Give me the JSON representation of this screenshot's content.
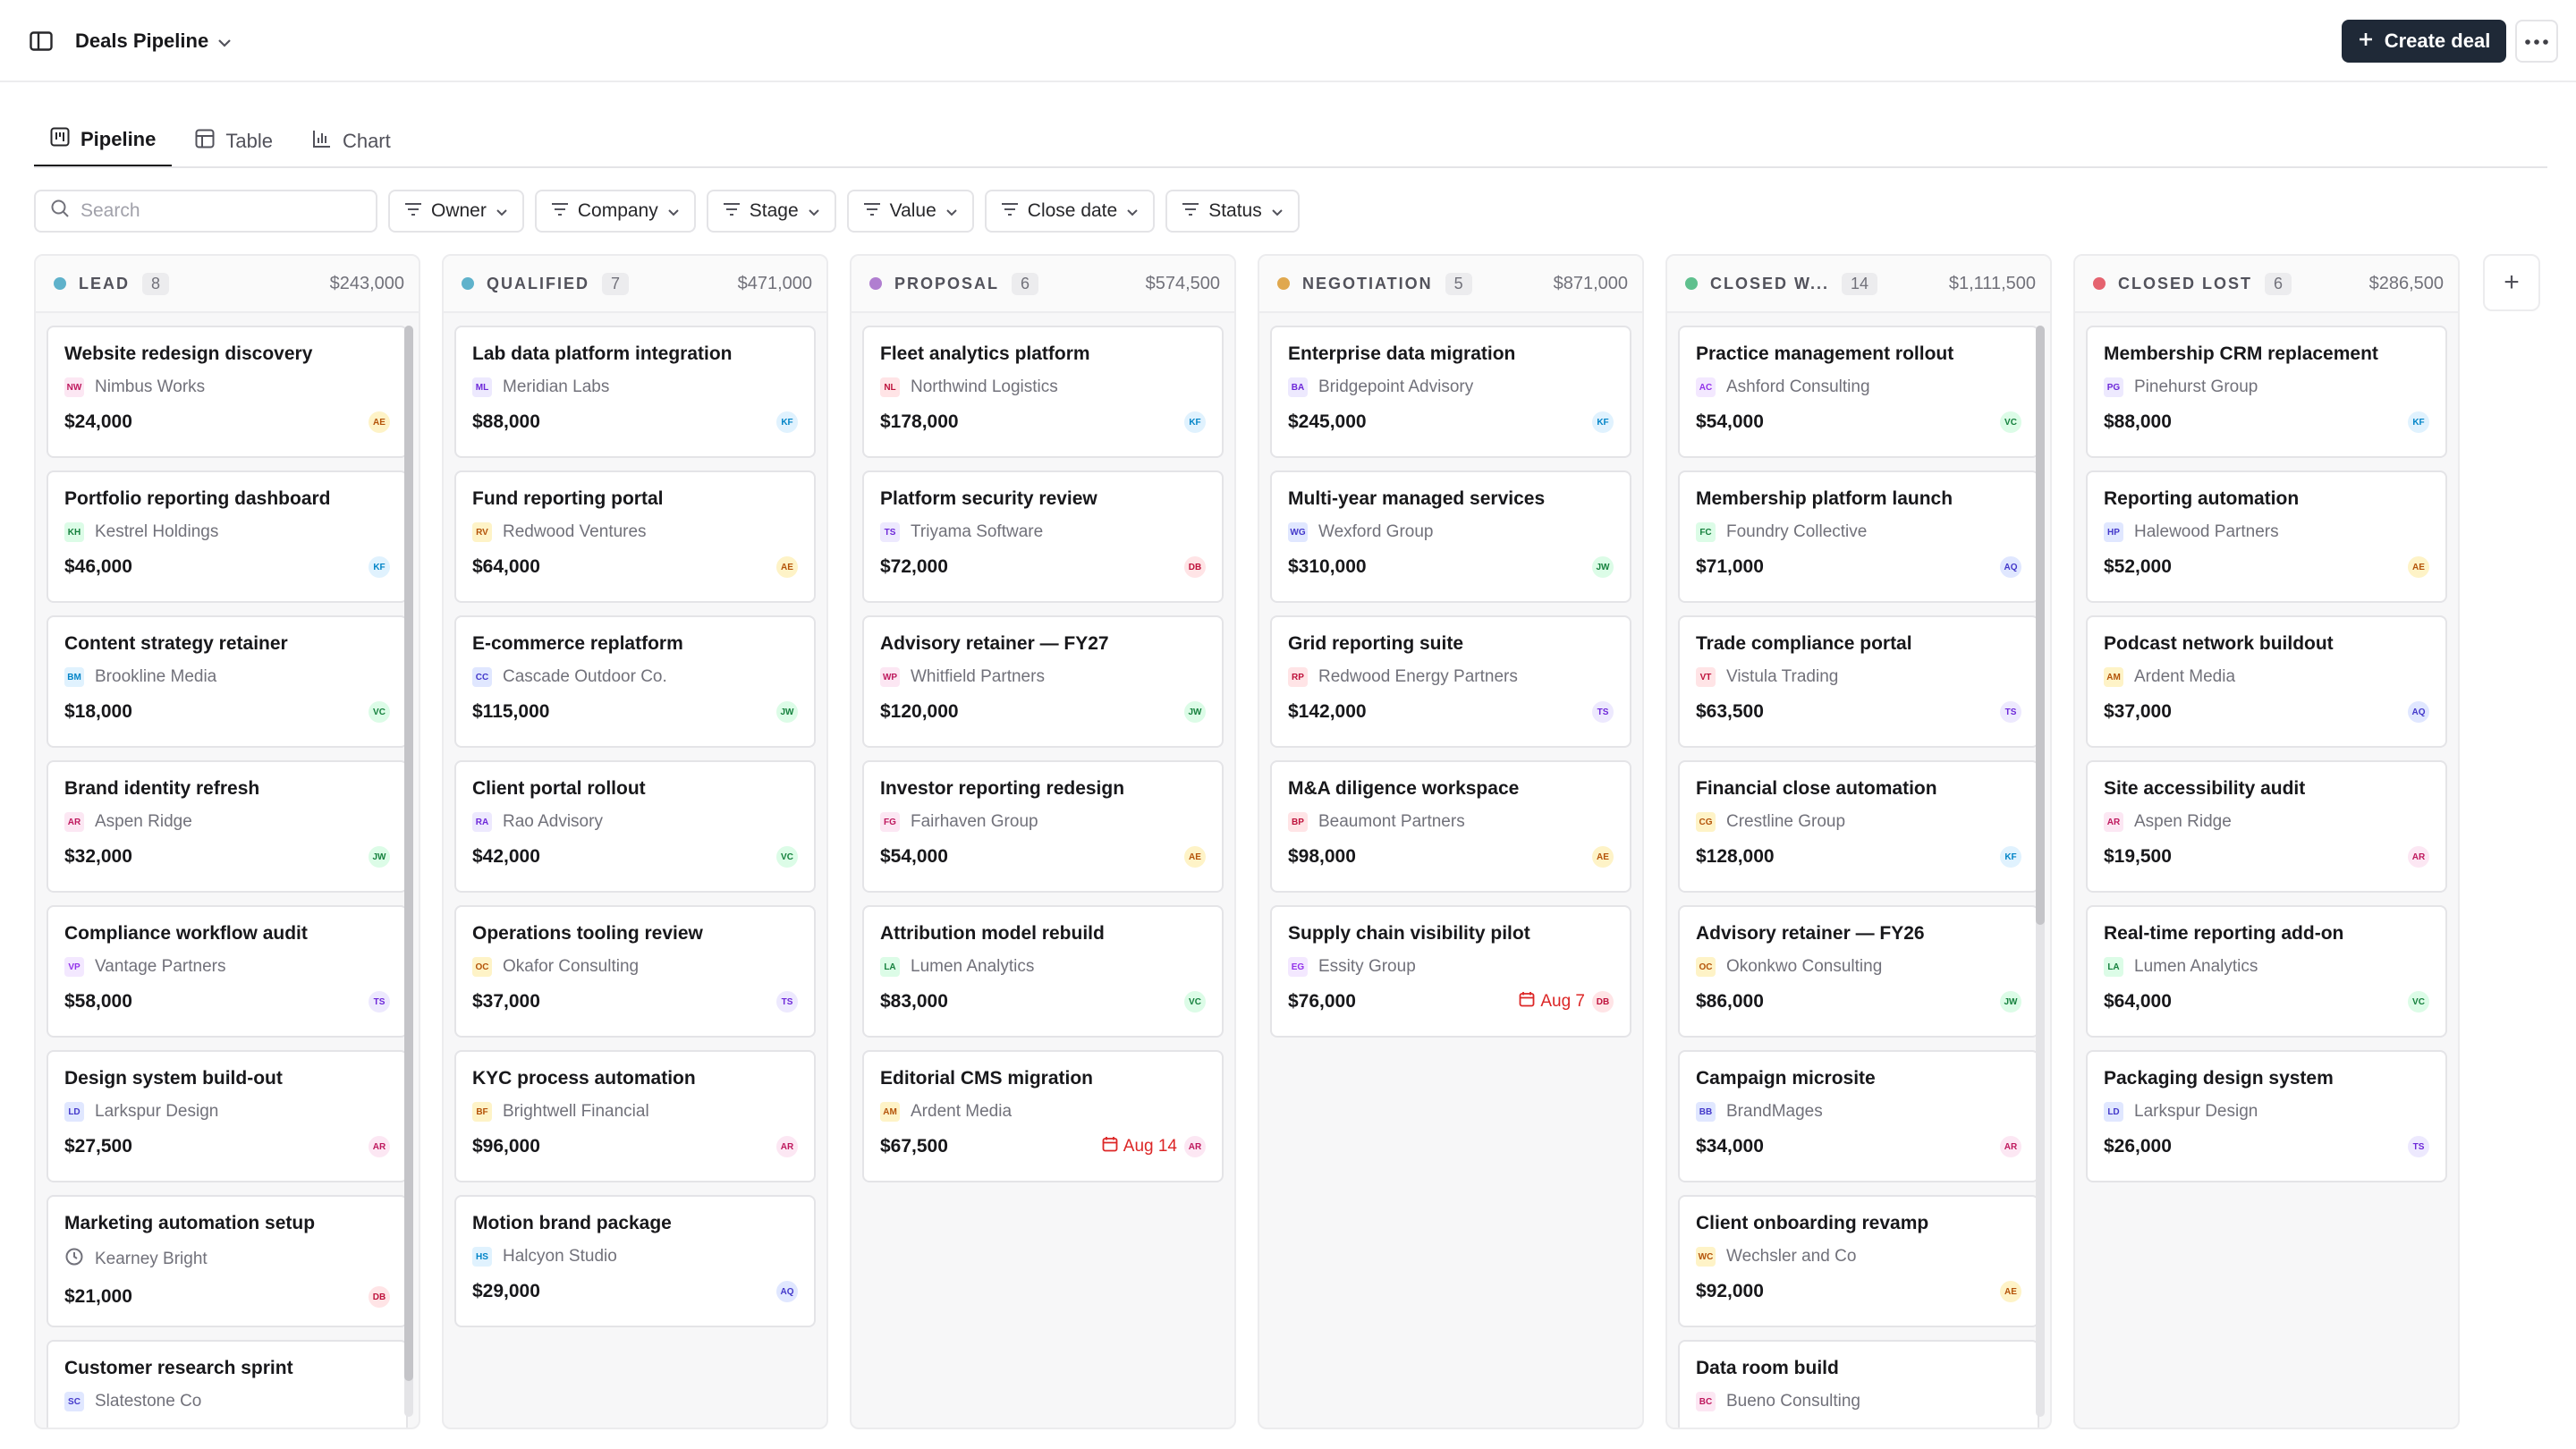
{
  "header": {
    "title": "Deals Pipeline",
    "create_label": "Create deal"
  },
  "tabs": [
    {
      "label": "Pipeline",
      "icon": "kanban-icon",
      "active": true
    },
    {
      "label": "Table",
      "icon": "table-icon",
      "active": false
    },
    {
      "label": "Chart",
      "icon": "bar-chart-icon",
      "active": false
    }
  ],
  "search": {
    "placeholder": "Search"
  },
  "filters": [
    "Owner",
    "Company",
    "Stage",
    "Value",
    "Close date",
    "Status"
  ],
  "columns": [
    {
      "name": "LEAD",
      "count": "8",
      "total": "$243,000",
      "color": "#5fb2cb",
      "cards": [
        {
          "title": "Website redesign discovery",
          "company": "Nimbus Works",
          "abbr": "NW",
          "value": "$24,000",
          "owner": "AE"
        },
        {
          "title": "Portfolio reporting dashboard",
          "company": "Kestrel Holdings",
          "abbr": "KH",
          "value": "$46,000",
          "owner": "KF"
        },
        {
          "title": "Content strategy retainer",
          "company": "Brookline Media",
          "abbr": "BM",
          "value": "$18,000",
          "owner": "VC"
        },
        {
          "title": "Brand identity refresh",
          "company": "Aspen Ridge",
          "abbr": "AR",
          "value": "$32,000",
          "owner": "JW"
        },
        {
          "title": "Compliance workflow audit",
          "company": "Vantage Partners",
          "abbr": "VP",
          "value": "$58,000",
          "owner": "TS"
        },
        {
          "title": "Design system build-out",
          "company": "Larkspur Design",
          "abbr": "LD",
          "value": "$27,500",
          "owner": "AR"
        },
        {
          "title": "Marketing automation setup",
          "company": "Kearney Bright",
          "abbr": "clock",
          "value": "$21,000",
          "owner": "DB"
        },
        {
          "title": "Customer research sprint",
          "company": "Slatestone Co",
          "abbr": "SC",
          "value": "",
          "owner": ""
        }
      ]
    },
    {
      "name": "QUALIFIED",
      "count": "7",
      "total": "$471,000",
      "color": "#5fb2cb",
      "cards": [
        {
          "title": "Lab data platform integration",
          "company": "Meridian Labs",
          "abbr": "ML",
          "value": "$88,000",
          "owner": "KF"
        },
        {
          "title": "Fund reporting portal",
          "company": "Redwood Ventures",
          "abbr": "RV",
          "value": "$64,000",
          "owner": "AE"
        },
        {
          "title": "E-commerce replatform",
          "company": "Cascade Outdoor Co.",
          "abbr": "CC",
          "value": "$115,000",
          "owner": "JW"
        },
        {
          "title": "Client portal rollout",
          "company": "Rao Advisory",
          "abbr": "RA",
          "value": "$42,000",
          "owner": "VC"
        },
        {
          "title": "Operations tooling review",
          "company": "Okafor Consulting",
          "abbr": "OC",
          "value": "$37,000",
          "owner": "TS"
        },
        {
          "title": "KYC process automation",
          "company": "Brightwell Financial",
          "abbr": "BF",
          "value": "$96,000",
          "owner": "AR"
        },
        {
          "title": "Motion brand package",
          "company": "Halcyon Studio",
          "abbr": "HS",
          "value": "$29,000",
          "owner": "AQ"
        }
      ]
    },
    {
      "name": "PROPOSAL",
      "count": "6",
      "total": "$574,500",
      "color": "#b07ed0",
      "cards": [
        {
          "title": "Fleet analytics platform",
          "company": "Northwind Logistics",
          "abbr": "NL",
          "value": "$178,000",
          "owner": "KF"
        },
        {
          "title": "Platform security review",
          "company": "Triyama Software",
          "abbr": "TS",
          "value": "$72,000",
          "owner": "DB"
        },
        {
          "title": "Advisory retainer — FY27",
          "company": "Whitfield Partners",
          "abbr": "WP",
          "value": "$120,000",
          "owner": "JW"
        },
        {
          "title": "Investor reporting redesign",
          "company": "Fairhaven Group",
          "abbr": "FG",
          "value": "$54,000",
          "owner": "AE"
        },
        {
          "title": "Attribution model rebuild",
          "company": "Lumen Analytics",
          "abbr": "LA",
          "value": "$83,000",
          "owner": "VC"
        },
        {
          "title": "Editorial CMS migration",
          "company": "Ardent Media",
          "abbr": "AM",
          "value": "$67,500",
          "owner": "AR",
          "due": "Aug 14"
        }
      ]
    },
    {
      "name": "NEGOTIATION",
      "count": "5",
      "total": "$871,000",
      "color": "#e0a84e",
      "cards": [
        {
          "title": "Enterprise data migration",
          "company": "Bridgepoint Advisory",
          "abbr": "BA",
          "value": "$245,000",
          "owner": "KF"
        },
        {
          "title": "Multi-year managed services",
          "company": "Wexford Group",
          "abbr": "WG",
          "value": "$310,000",
          "owner": "JW"
        },
        {
          "title": "Grid reporting suite",
          "company": "Redwood Energy Partners",
          "abbr": "RP",
          "value": "$142,000",
          "owner": "TS"
        },
        {
          "title": "M&A diligence workspace",
          "company": "Beaumont Partners",
          "abbr": "BP",
          "value": "$98,000",
          "owner": "AE"
        },
        {
          "title": "Supply chain visibility pilot",
          "company": "Essity Group",
          "abbr": "EG",
          "value": "$76,000",
          "owner": "DB",
          "due": "Aug 7"
        }
      ]
    },
    {
      "name": "CLOSED W...",
      "count": "14",
      "total": "$1,111,500",
      "color": "#5fc08e",
      "cards": [
        {
          "title": "Practice management rollout",
          "company": "Ashford Consulting",
          "abbr": "AC",
          "value": "$54,000",
          "owner": "VC"
        },
        {
          "title": "Membership platform launch",
          "company": "Foundry Collective",
          "abbr": "FC",
          "value": "$71,000",
          "owner": "AQ"
        },
        {
          "title": "Trade compliance portal",
          "company": "Vistula Trading",
          "abbr": "VT",
          "value": "$63,500",
          "owner": "TS"
        },
        {
          "title": "Financial close automation",
          "company": "Crestline Group",
          "abbr": "CG",
          "value": "$128,000",
          "owner": "KF"
        },
        {
          "title": "Advisory retainer — FY26",
          "company": "Okonkwo Consulting",
          "abbr": "OC",
          "value": "$86,000",
          "owner": "JW"
        },
        {
          "title": "Campaign microsite",
          "company": "BrandMages",
          "abbr": "BB",
          "value": "$34,000",
          "owner": "AR"
        },
        {
          "title": "Client onboarding revamp",
          "company": "Wechsler and Co",
          "abbr": "WC",
          "value": "$92,000",
          "owner": "AE"
        },
        {
          "title": "Data room build",
          "company": "Bueno Consulting",
          "abbr": "BC",
          "value": "",
          "owner": ""
        }
      ]
    },
    {
      "name": "CLOSED LOST",
      "count": "6",
      "total": "$286,500",
      "color": "#e5636f",
      "cards": [
        {
          "title": "Membership CRM replacement",
          "company": "Pinehurst Group",
          "abbr": "PG",
          "value": "$88,000",
          "owner": "KF"
        },
        {
          "title": "Reporting automation",
          "company": "Halewood Partners",
          "abbr": "HP",
          "value": "$52,000",
          "owner": "AE"
        },
        {
          "title": "Podcast network buildout",
          "company": "Ardent Media",
          "abbr": "AM",
          "value": "$37,000",
          "owner": "AQ"
        },
        {
          "title": "Site accessibility audit",
          "company": "Aspen Ridge",
          "abbr": "AR",
          "value": "$19,500",
          "owner": "AR"
        },
        {
          "title": "Real-time reporting add-on",
          "company": "Lumen Analytics",
          "abbr": "LA",
          "value": "$64,000",
          "owner": "VC"
        },
        {
          "title": "Packaging design system",
          "company": "Larkspur Design",
          "abbr": "LD",
          "value": "$26,000",
          "owner": "TS"
        }
      ]
    }
  ]
}
